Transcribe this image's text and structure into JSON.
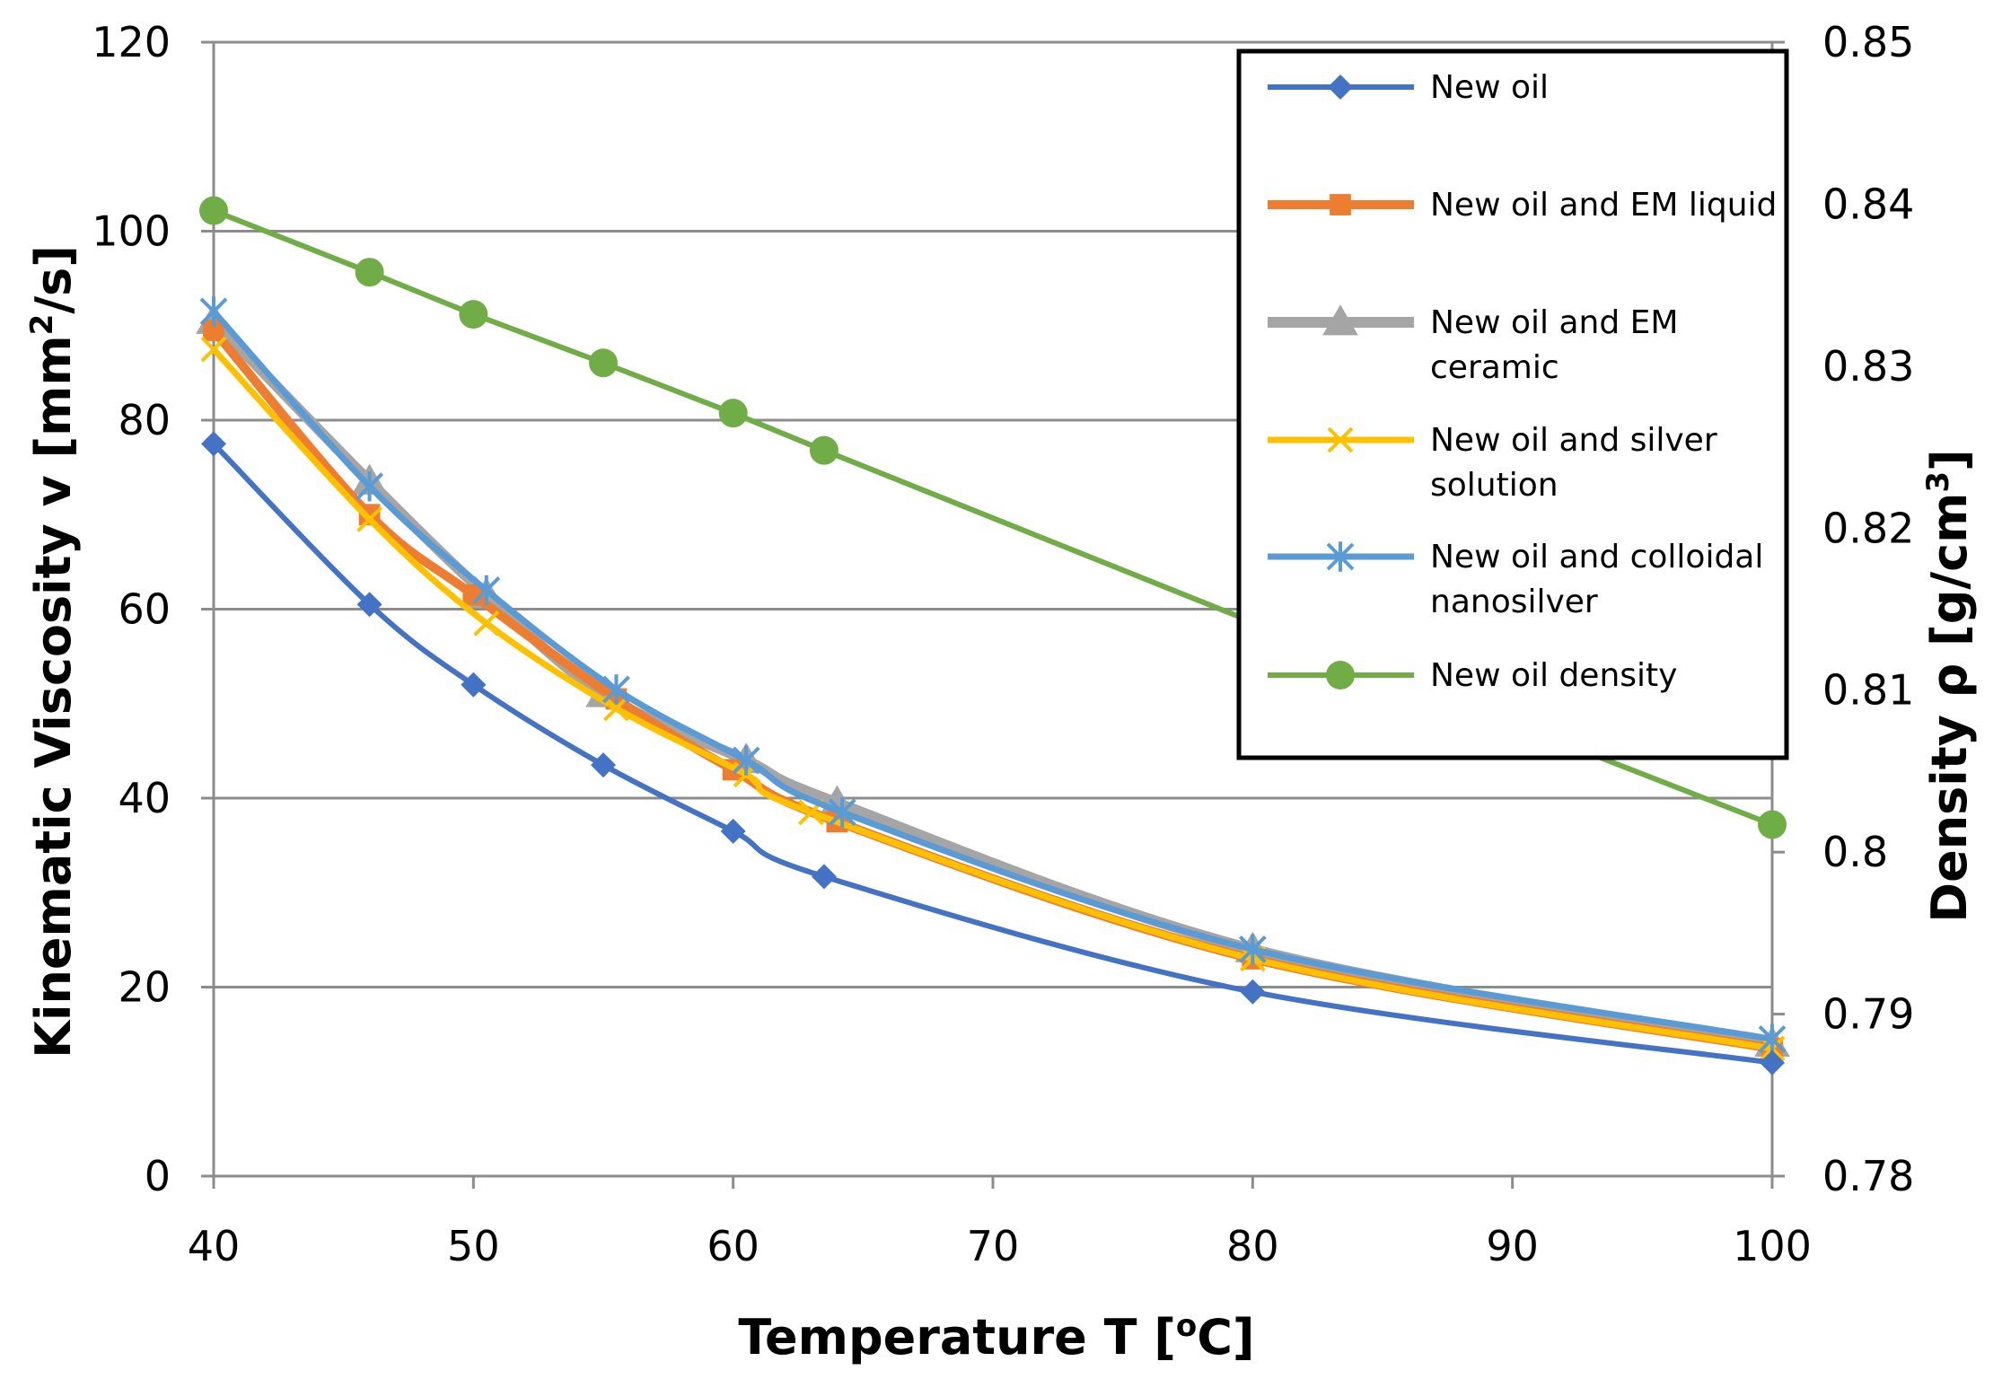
{
  "chart_data": {
    "type": "line",
    "title": "",
    "xlabel": "Temperature T  [°C]",
    "xlabel_parts": {
      "main": "Temperature T  [",
      "sup": "o",
      "tail": "C]"
    },
    "ylabel": "Kinematic Viscosity v [mm²/s]",
    "ylabel_parts": {
      "main": "Kinematic Viscosity v [mm",
      "sup": "2",
      "tail": "/s]"
    },
    "y2label": "Density ρ [g/cm³]",
    "y2label_parts": {
      "main": "Density ρ [g/cm",
      "sup": "3",
      "tail": "]"
    },
    "xlim": [
      40,
      100
    ],
    "ylim": [
      0,
      120
    ],
    "y2lim": [
      0.78,
      0.85
    ],
    "xticks": [
      "40",
      "50",
      "60",
      "70",
      "80",
      "90",
      "100"
    ],
    "yticks": [
      "0",
      "20",
      "40",
      "60",
      "80",
      "100",
      "120"
    ],
    "y2ticks": [
      "0.78",
      "0.79",
      "0.8",
      "0.81",
      "0.82",
      "0.83",
      "0.84",
      "0.85"
    ],
    "grid": "horizontal",
    "legend_position": "top-right",
    "series": [
      {
        "name": "New oil",
        "legend_lines": [
          "New oil"
        ],
        "color": "#4472C4",
        "marker": "diamond",
        "axis": "left",
        "x": [
          40,
          46,
          50,
          55,
          60,
          63.5,
          80,
          100
        ],
        "y": [
          77.5,
          60.5,
          52,
          43.5,
          36.5,
          31.7,
          19.5,
          12
        ]
      },
      {
        "name": "New oil and EM liquid",
        "legend_lines": [
          "New oil and EM liquid"
        ],
        "color": "#ED7D31",
        "marker": "square",
        "axis": "left",
        "x": [
          40,
          46,
          50,
          55.5,
          60,
          64,
          80,
          100
        ],
        "y": [
          89.5,
          70,
          61.5,
          50.5,
          43,
          37.5,
          23,
          13.5
        ]
      },
      {
        "name": "New oil and EM ceramic",
        "legend_lines": [
          "New oil and EM",
          "ceramic"
        ],
        "color": "#A5A5A5",
        "marker": "triangle",
        "axis": "left",
        "x": [
          40,
          46,
          50.5,
          55,
          60.5,
          64,
          80,
          100
        ],
        "y": [
          90.5,
          73.5,
          61.5,
          51,
          44,
          39.5,
          24,
          14
        ]
      },
      {
        "name": "New oil and silver solution",
        "legend_lines": [
          "New oil and silver",
          "solution"
        ],
        "color": "#FFC000",
        "marker": "x",
        "axis": "left",
        "x": [
          40,
          46,
          50.5,
          55.5,
          60.5,
          63,
          80,
          100
        ],
        "y": [
          87.5,
          69.5,
          58.5,
          49.5,
          42.5,
          38.5,
          23,
          13.5
        ]
      },
      {
        "name": "New oil and colloidal nanosilver",
        "legend_lines": [
          "New oil and colloidal",
          "nanosilver"
        ],
        "color": "#5B9BD5",
        "marker": "star",
        "axis": "left",
        "x": [
          40,
          46,
          50.5,
          55.5,
          60.5,
          64.2,
          80,
          100
        ],
        "y": [
          91.5,
          73,
          62,
          51.5,
          44,
          38.5,
          24,
          14.5
        ]
      },
      {
        "name": "New oil density",
        "legend_lines": [
          "New oil density"
        ],
        "color": "#70AD47",
        "marker": "circle",
        "axis": "right",
        "x": [
          40,
          46,
          50,
          55,
          60,
          63.5,
          80,
          100
        ],
        "y": [
          0.8396,
          0.8358,
          0.8332,
          0.8302,
          0.8271,
          0.8248,
          0.8142,
          0.8017
        ]
      }
    ]
  }
}
